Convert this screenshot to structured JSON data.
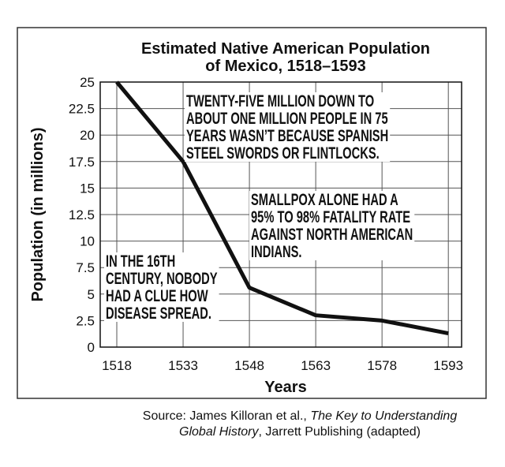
{
  "chart_data": {
    "type": "line",
    "title": [
      "Estimated Native American Population",
      "of Mexico, 1518–1593"
    ],
    "y_label": "Population (in millions)",
    "x_label": "Years",
    "x": [
      1518,
      1533,
      1548,
      1563,
      1578,
      1593
    ],
    "series": [
      {
        "color": "#111111",
        "values": [
          25,
          17.5,
          5.6,
          3,
          2.5,
          1.3
        ]
      }
    ],
    "xlim": [
      1514.25,
      1596
    ],
    "xticks": [
      1518,
      1533,
      1548,
      1563,
      1578,
      1593
    ],
    "ylim": [
      0,
      25
    ],
    "yticks": [
      0,
      2.5,
      5,
      7.5,
      10,
      12.5,
      15,
      17.5,
      20,
      22.5,
      25
    ],
    "grid": true,
    "annotations": [
      {
        "lines": [
          "TWENTY-FIVE MILLION DOWN TO",
          "ABOUT ONE MILLION PEOPLE IN 75",
          "YEARS WASN’T BECAUSE SPANISH",
          "STEEL SWORDS OR FLINTLOCKS."
        ]
      },
      {
        "lines": [
          "SMALLPOX ALONE HAD A",
          "95% TO 98% FATALITY RATE",
          "AGAINST NORTH AMERICAN",
          "INDIANS."
        ]
      },
      {
        "lines": [
          "IN THE 16TH",
          "CENTURY, NOBODY",
          "HAD A CLUE HOW",
          "DISEASE SPREAD."
        ]
      }
    ],
    "source": [
      [
        {
          "text": "Source: James Killoran et al., ",
          "italic": false
        },
        {
          "text": "The Key to Understanding",
          "italic": true
        }
      ],
      [
        {
          "text": "Global History",
          "italic": true
        },
        {
          "text": ", Jarrett Publishing (adapted)",
          "italic": false
        }
      ]
    ]
  }
}
